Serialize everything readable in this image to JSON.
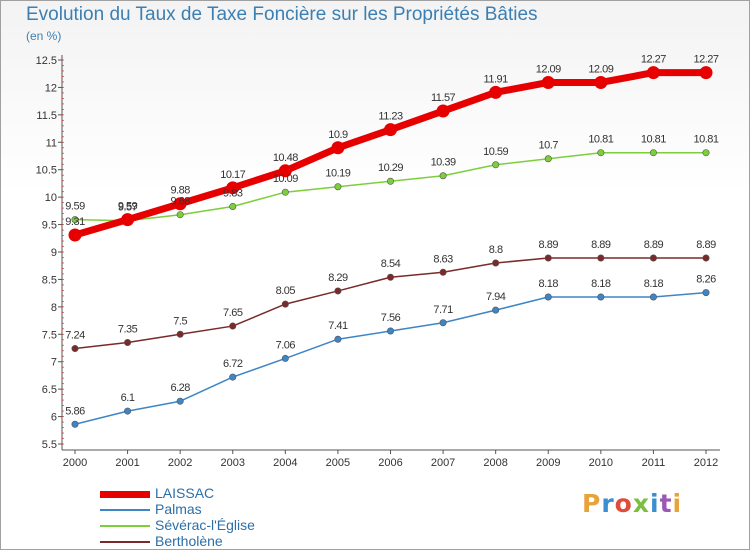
{
  "header": {
    "title": "Evolution du Taux de Taxe Foncière sur les Propriétés Bâties",
    "subtitle": "(en %)"
  },
  "logo": {
    "text": "Proxiti",
    "colors": [
      "#e8a33b",
      "#3a8fd0",
      "#e14c3a",
      "#7cbf3f",
      "#3a8fd0",
      "#9b59b6",
      "#e8a33b"
    ]
  },
  "chart_data": {
    "type": "line",
    "title": "Evolution du Taux de Taxe Foncière sur les Propriétés Bâties",
    "ylabel": "(en %)",
    "xlabel": "",
    "x": [
      "2000",
      "2001",
      "2002",
      "2003",
      "2004",
      "2005",
      "2006",
      "2007",
      "2008",
      "2009",
      "2010",
      "2011",
      "2012"
    ],
    "ylim": [
      5.5,
      12.5
    ],
    "yticks": [
      "5.5",
      "6",
      "6.5",
      "7",
      "7.5",
      "8",
      "8.5",
      "9",
      "9.5",
      "10",
      "10.5",
      "11",
      "11.5",
      "12",
      "12.5"
    ],
    "grid": false,
    "legend_position": "bottom-left",
    "series": [
      {
        "name": "LAISSAC",
        "color": "#e60000",
        "values": [
          9.31,
          9.59,
          9.88,
          10.17,
          10.48,
          10.9,
          11.23,
          11.57,
          11.91,
          12.09,
          12.09,
          12.27,
          12.27
        ],
        "labels": [
          "9.31",
          "9.59",
          "9.88",
          "10.17",
          "10.48",
          "10.9",
          "11.23",
          "11.57",
          "11.91",
          "12.09",
          "12.09",
          "12.27",
          "12.27"
        ]
      },
      {
        "name": "Palmas",
        "color": "#3d85c6",
        "values": [
          5.86,
          6.1,
          6.28,
          6.72,
          7.06,
          7.41,
          7.56,
          7.71,
          7.94,
          8.18,
          8.18,
          8.18,
          8.26
        ],
        "labels": [
          "5.86",
          "6.1",
          "6.28",
          "6.72",
          "7.06",
          "7.41",
          "7.56",
          "7.71",
          "7.94",
          "8.18",
          "8.18",
          "8.18",
          "8.26"
        ]
      },
      {
        "name": "Sévérac-l'Église",
        "color": "#7ccf3a",
        "values": [
          9.59,
          9.57,
          9.68,
          9.83,
          10.09,
          10.19,
          10.29,
          10.39,
          10.59,
          10.7,
          10.81,
          10.81,
          10.81
        ],
        "labels": [
          "9.59",
          "9.57",
          "9.68",
          "9.83",
          "10.09",
          "10.19",
          "10.29",
          "10.39",
          "10.59",
          "10.7",
          "10.81",
          "10.81",
          "10.81"
        ]
      },
      {
        "name": "Bertholène",
        "color": "#7a2a2a",
        "values": [
          7.24,
          7.35,
          7.5,
          7.65,
          8.05,
          8.29,
          8.54,
          8.63,
          8.8,
          8.89,
          8.89,
          8.89,
          8.89
        ],
        "labels": [
          "7.24",
          "7.35",
          "7.5",
          "7.65",
          "8.05",
          "8.29",
          "8.54",
          "8.63",
          "8.8",
          "8.89",
          "8.89",
          "8.89",
          "8.89"
        ]
      }
    ]
  }
}
